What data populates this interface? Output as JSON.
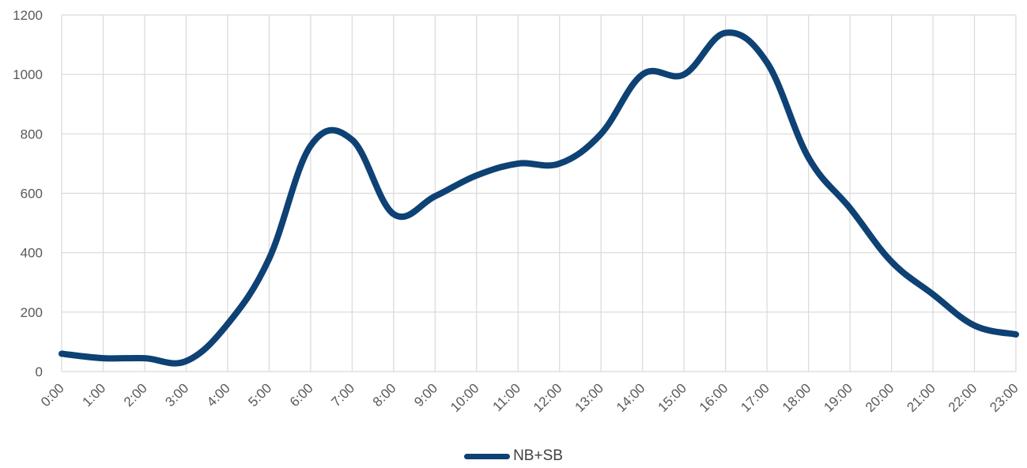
{
  "chart_data": {
    "type": "line",
    "title": "",
    "xlabel": "",
    "ylabel": "",
    "x": [
      "0:00",
      "1:00",
      "2:00",
      "3:00",
      "4:00",
      "5:00",
      "6:00",
      "7:00",
      "8:00",
      "9:00",
      "10:00",
      "11:00",
      "12:00",
      "13:00",
      "14:00",
      "15:00",
      "16:00",
      "17:00",
      "18:00",
      "19:00",
      "20:00",
      "21:00",
      "22:00",
      "23:00"
    ],
    "ylim": [
      0,
      1200
    ],
    "yticks": [
      0,
      200,
      400,
      600,
      800,
      1000,
      1200
    ],
    "grid": true,
    "legend_position": "bottom",
    "series": [
      {
        "name": "NB+SB",
        "color": "#0e4174",
        "values": [
          60,
          45,
          45,
          35,
          160,
          380,
          760,
          780,
          530,
          590,
          660,
          700,
          700,
          800,
          1000,
          1000,
          1140,
          1040,
          720,
          550,
          370,
          260,
          155,
          125
        ]
      }
    ]
  }
}
